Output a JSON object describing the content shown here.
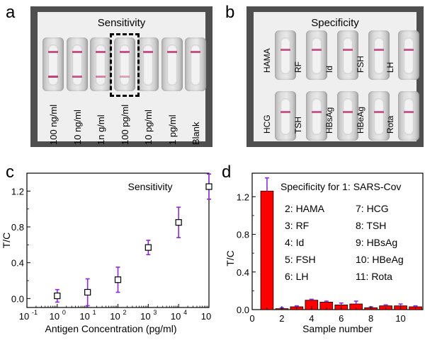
{
  "panel_labels": {
    "a": "a",
    "b": "b",
    "c": "c",
    "d": "d"
  },
  "panel_a": {
    "title": "Sensitivity",
    "strips": [
      {
        "label": "100 ng/ml",
        "control": 0.85,
        "test": 0.25,
        "test_intensity": 1.0
      },
      {
        "label": "10 ng/ml",
        "control": 0.85,
        "test": 0.25,
        "test_intensity": 0.8
      },
      {
        "label": "1n g/ml",
        "control": 0.85,
        "test": 0.25,
        "test_intensity": 0.5
      },
      {
        "label": "100 pg/ml",
        "control": 0.85,
        "test": 0.25,
        "test_intensity": 0.25
      },
      {
        "label": "10 pg/ml",
        "control": 0.85,
        "test": null,
        "test_intensity": 0
      },
      {
        "label": "1 pg/ml",
        "control": 0.85,
        "test": null,
        "test_intensity": 0
      },
      {
        "label": "Blank",
        "control": 0.85,
        "test": null,
        "test_intensity": 0
      }
    ],
    "highlighted_index": 3
  },
  "panel_b": {
    "title": "Specificity",
    "row1": [
      "HAMA",
      "RF",
      "Id",
      "FSH",
      "LH"
    ],
    "row2": [
      "HCG",
      "TSH",
      "HBsAg",
      "HBeAg",
      "Rota"
    ]
  },
  "panel_c": {
    "chart_data": {
      "type": "scatter",
      "title": "Sensitivity",
      "xlabel": "Antigen Concentration (pg/ml)",
      "ylabel": "T/C",
      "xscale": "log",
      "xlim": [
        0.1,
        100000
      ],
      "ylim": [
        -0.1,
        1.4
      ],
      "xticks": [
        "10",
        "10",
        "10",
        "10",
        "10",
        "10",
        "10"
      ],
      "xtick_exponents": [
        "-1",
        "0",
        "1",
        "2",
        "3",
        "4",
        "5"
      ],
      "yticks": [
        "0.0",
        "0.4",
        "0.8",
        "1.2"
      ],
      "points": [
        {
          "x": 1,
          "y": 0.03,
          "err": 0.07
        },
        {
          "x": 10,
          "y": 0.07,
          "err": 0.15
        },
        {
          "x": 100,
          "y": 0.21,
          "err": 0.14
        },
        {
          "x": 1000,
          "y": 0.57,
          "err": 0.08
        },
        {
          "x": 10000,
          "y": 0.85,
          "err": 0.17
        },
        {
          "x": 100000,
          "y": 1.25,
          "err": 0.14
        }
      ],
      "marker_color": "#000000",
      "errorbar_color": "#8a2be2"
    }
  },
  "panel_d": {
    "chart_data": {
      "type": "bar",
      "xlabel": "Sample number",
      "ylabel": "T/C",
      "xlim": [
        0,
        11.5
      ],
      "ylim": [
        0,
        1.45
      ],
      "xticks": [
        "0",
        "2",
        "4",
        "6",
        "8",
        "10"
      ],
      "yticks": [
        "0.0",
        "0.4",
        "0.8",
        "1.2"
      ],
      "categories": [
        1,
        2,
        3,
        4,
        5,
        6,
        7,
        8,
        9,
        10,
        11
      ],
      "values": [
        1.26,
        0.01,
        0.03,
        0.1,
        0.08,
        0.05,
        0.06,
        0.02,
        0.04,
        0.04,
        0.03
      ],
      "errors": [
        0.14,
        0.01,
        0.01,
        0.01,
        0.01,
        0.02,
        0.03,
        0.01,
        0.01,
        0.02,
        0.01
      ],
      "bar_color": "#ff0000",
      "errorbar_color": "#8a2be2",
      "legend_title": "Specificity for 1: SARS-Cov",
      "legend_left": [
        "2: HAMA",
        "3: RF",
        "4: Id",
        "5: FSH",
        "6: LH"
      ],
      "legend_right": [
        "7: HCG",
        "8: TSH",
        "9: HBsAg",
        "10: HBeAg",
        "11: Rota"
      ]
    }
  }
}
